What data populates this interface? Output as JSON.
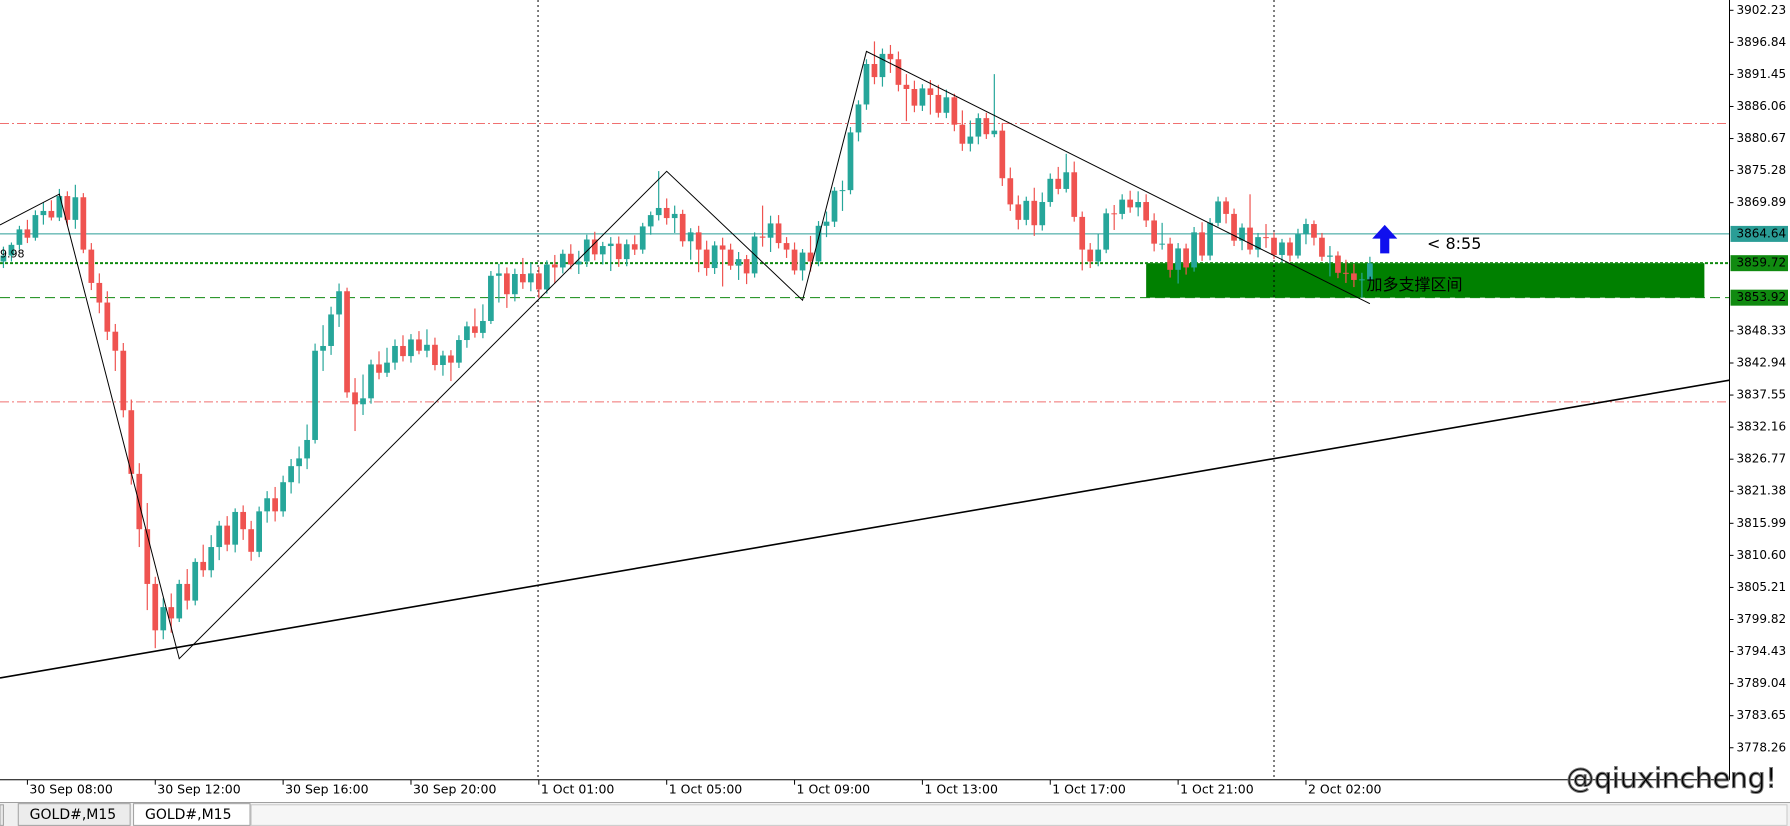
{
  "chart_data": {
    "type": "candlestick",
    "bull_color": "#26a69a",
    "bear_color": "#ef5350",
    "xlim": [
      -0.43,
      216
    ],
    "ylim": [
      3772.89,
      3903.96
    ],
    "yticks": [
      3902.23,
      3896.84,
      3891.45,
      3886.06,
      3880.67,
      3875.28,
      3869.89,
      3848.33,
      3842.94,
      3837.55,
      3832.16,
      3826.77,
      3821.38,
      3815.99,
      {
        "value": 3810.6,
        "label": "3810.60"
      },
      3805.21,
      3799.82,
      3794.43,
      3789.04,
      3783.65,
      3778.26
    ],
    "xticks": [
      {
        "value": 3,
        "label": "30 Sep 08:00"
      },
      {
        "value": 19,
        "label": "30 Sep 12:00"
      },
      {
        "value": 35,
        "label": "30 Sep 16:00"
      },
      {
        "value": 51,
        "label": "30 Sep 20:00"
      },
      {
        "value": 67,
        "label": "1 Oct 01:00"
      },
      {
        "value": 83,
        "label": "1 Oct 05:00"
      },
      {
        "value": 99,
        "label": "1 Oct 09:00"
      },
      {
        "value": 115,
        "label": "1 Oct 13:00"
      },
      {
        "value": 131,
        "label": "1 Oct 17:00"
      },
      {
        "value": 147,
        "label": "1 Oct 21:00"
      },
      {
        "value": 163,
        "label": "2 Oct 02:00"
      }
    ],
    "separators": [
      66.9,
      159
    ],
    "candles": [
      [
        3860,
        3862.5,
        3858.9,
        3861
      ],
      [
        3861,
        3863.2,
        3860,
        3862.8
      ],
      [
        3862.8,
        3866,
        3862,
        3865.4
      ],
      [
        3865.4,
        3867,
        3863.1,
        3864
      ],
      [
        3864,
        3868.6,
        3863.5,
        3867.8
      ],
      [
        3867.8,
        3869.9,
        3866.2,
        3868.5
      ],
      [
        3868.5,
        3870.3,
        3866.9,
        3867.4
      ],
      [
        3867.4,
        3872.2,
        3866.8,
        3871
      ],
      [
        3871,
        3871.8,
        3866.1,
        3867
      ],
      [
        3867,
        3872.9,
        3865.5,
        3870.8
      ],
      [
        3870.8,
        3871.5,
        3861.4,
        3862
      ],
      [
        3862,
        3863.1,
        3855.2,
        3856.4
      ],
      [
        3856.4,
        3858,
        3851.3,
        3853.1
      ],
      [
        3853.1,
        3855,
        3846.8,
        3848.2
      ],
      [
        3848.2,
        3849.5,
        3841.6,
        3845
      ],
      [
        3845,
        3846.3,
        3833.8,
        3835
      ],
      [
        3835,
        3836.8,
        3822.5,
        3824.3
      ],
      [
        3824.3,
        3826.1,
        3812,
        3815
      ],
      [
        3815,
        3819.4,
        3801.4,
        3805.8
      ],
      [
        3805.8,
        3807,
        3795,
        3798
      ],
      [
        3798,
        3803.4,
        3796.5,
        3801.9
      ],
      [
        3801.9,
        3804.2,
        3797.6,
        3800
      ],
      [
        3800,
        3806.5,
        3799.4,
        3805.8
      ],
      [
        3805.8,
        3808.3,
        3801.5,
        3803
      ],
      [
        3803,
        3810.1,
        3802.2,
        3809.5
      ],
      [
        3809.5,
        3812.4,
        3807,
        3808.1
      ],
      [
        3808.1,
        3814,
        3806.9,
        3812
      ],
      [
        3812,
        3816.4,
        3809.8,
        3815.6
      ],
      [
        3815.6,
        3817.2,
        3811.3,
        3812.4
      ],
      [
        3812.4,
        3818.5,
        3811.1,
        3817.9
      ],
      [
        3817.9,
        3819,
        3813.2,
        3815
      ],
      [
        3815,
        3816.4,
        3809.7,
        3811.2
      ],
      [
        3811.2,
        3818.8,
        3810.3,
        3818
      ],
      [
        3818,
        3821.4,
        3816.1,
        3820.2
      ],
      [
        3820.2,
        3822.1,
        3816.3,
        3818
      ],
      [
        3818,
        3824,
        3817.1,
        3822.9
      ],
      [
        3822.9,
        3826.8,
        3821,
        3825.6
      ],
      [
        3825.6,
        3828.9,
        3822.7,
        3826.9
      ],
      [
        3826.9,
        3832.6,
        3825.1,
        3830
      ],
      [
        3830,
        3846.2,
        3829.4,
        3845
      ],
      [
        3845,
        3849.3,
        3841.6,
        3845.8
      ],
      [
        3845.8,
        3852.4,
        3844.3,
        3851.1
      ],
      [
        3851.1,
        3856.3,
        3849,
        3855
      ],
      [
        3855,
        3855.6,
        3837.1,
        3838
      ],
      [
        3838,
        3840.4,
        3831.5,
        3836
      ],
      [
        3836,
        3841,
        3834.2,
        3837
      ],
      [
        3837,
        3843.5,
        3836.1,
        3842.7
      ],
      [
        3842.7,
        3844.9,
        3840.2,
        3841.3
      ],
      [
        3841.3,
        3845.5,
        3840.6,
        3843
      ],
      [
        3843,
        3846.9,
        3841.8,
        3845.8
      ],
      [
        3845.8,
        3847.6,
        3843.2,
        3844.1
      ],
      [
        3844.1,
        3847.8,
        3843,
        3846.9
      ],
      [
        3846.9,
        3848.3,
        3844.4,
        3845
      ],
      [
        3845,
        3848.6,
        3843.9,
        3846
      ],
      [
        3846,
        3847.2,
        3841.7,
        3842.6
      ],
      [
        3842.6,
        3845,
        3840.8,
        3844.2
      ],
      [
        3844.2,
        3845.1,
        3839.9,
        3843
      ],
      [
        3843,
        3847.6,
        3842.1,
        3846.8
      ],
      [
        3846.8,
        3849.9,
        3845.5,
        3849.1
      ],
      [
        3849.1,
        3852.1,
        3847.2,
        3848
      ],
      [
        3848,
        3852.8,
        3847.1,
        3850
      ],
      [
        3850,
        3858.4,
        3849.5,
        3857.6
      ],
      [
        3857.6,
        3859.6,
        3853.1,
        3858
      ],
      [
        3858,
        3859,
        3852.2,
        3854.5
      ],
      [
        3854.5,
        3858.8,
        3853.3,
        3857.9
      ],
      [
        3857.9,
        3860.6,
        3855.4,
        3856.5
      ],
      [
        3856.5,
        3859.8,
        3855,
        3858
      ],
      [
        3858,
        3859.1,
        3853.9,
        3855.3
      ],
      [
        3855.3,
        3860.2,
        3854.6,
        3859.5
      ],
      [
        3859.5,
        3861.1,
        3856.3,
        3859
      ],
      [
        3859,
        3862,
        3858,
        3861.3
      ],
      [
        3861.3,
        3862.9,
        3858.7,
        3859.5
      ],
      [
        3859.5,
        3861.8,
        3857.9,
        3860
      ],
      [
        3860,
        3864.5,
        3859.1,
        3863.7
      ],
      [
        3863.7,
        3865,
        3860.2,
        3861.2
      ],
      [
        3861.2,
        3863.3,
        3859.5,
        3862.6
      ],
      [
        3862.6,
        3864.1,
        3858.4,
        3863
      ],
      [
        3863,
        3864.2,
        3859.1,
        3860.4
      ],
      [
        3860.4,
        3863.7,
        3859.2,
        3862.9
      ],
      [
        3862.9,
        3864.4,
        3861.1,
        3862
      ],
      [
        3862,
        3866.5,
        3861.3,
        3865.9
      ],
      [
        3865.9,
        3868.4,
        3864.5,
        3867.8
      ],
      [
        3867.8,
        3875.2,
        3866.9,
        3869
      ],
      [
        3869,
        3870.6,
        3866.2,
        3867.3
      ],
      [
        3867.3,
        3869.4,
        3864.8,
        3868
      ],
      [
        3868,
        3868.7,
        3862.5,
        3863.4
      ],
      [
        3863.4,
        3865.6,
        3860.3,
        3864.9
      ],
      [
        3864.9,
        3866,
        3858.2,
        3862
      ],
      [
        3862,
        3863.5,
        3857.6,
        3858.9
      ],
      [
        3858.9,
        3863.4,
        3857.9,
        3862.7
      ],
      [
        3862.7,
        3864,
        3855.8,
        3862
      ],
      [
        3862,
        3863,
        3858.6,
        3859.3
      ],
      [
        3859.3,
        3861.6,
        3856.9,
        3860.4
      ],
      [
        3860.4,
        3861.1,
        3856.2,
        3858
      ],
      [
        3858,
        3864.9,
        3857.3,
        3864.2
      ],
      [
        3864.2,
        3869.4,
        3862.5,
        3864
      ],
      [
        3864,
        3867.7,
        3861.6,
        3866.4
      ],
      [
        3866.4,
        3867.8,
        3862.2,
        3863.1
      ],
      [
        3863.1,
        3864.1,
        3860.6,
        3862
      ],
      [
        3862,
        3863.2,
        3857.8,
        3858.5
      ],
      [
        3858.5,
        3862.1,
        3856.8,
        3861.5
      ],
      [
        3861.5,
        3864.3,
        3858.3,
        3860
      ],
      [
        3860,
        3866.8,
        3859.2,
        3866
      ],
      [
        3866,
        3868.4,
        3864.1,
        3866.7
      ],
      [
        3866.7,
        3872.5,
        3865.8,
        3871.9
      ],
      [
        3871.9,
        3873.6,
        3868.5,
        3872
      ],
      [
        3872,
        3882.6,
        3871.3,
        3881.7
      ],
      [
        3881.7,
        3887.1,
        3880.2,
        3886.4
      ],
      [
        3886.4,
        3894,
        3885.5,
        3893.2
      ],
      [
        3893.2,
        3897,
        3889.8,
        3891
      ],
      [
        3891,
        3895.8,
        3889.4,
        3894.9
      ],
      [
        3894.9,
        3896.4,
        3891.7,
        3894
      ],
      [
        3894,
        3895.3,
        3888.6,
        3889.7
      ],
      [
        3889.7,
        3891.5,
        3883.6,
        3889
      ],
      [
        3889,
        3890.4,
        3885.1,
        3886.2
      ],
      [
        3886.2,
        3889.8,
        3885.3,
        3889.1
      ],
      [
        3889.1,
        3890.5,
        3884.7,
        3888
      ],
      [
        3888,
        3889.7,
        3884.2,
        3885
      ],
      [
        3885,
        3888.9,
        3884.1,
        3887.6
      ],
      [
        3887.6,
        3888.2,
        3881.9,
        3883
      ],
      [
        3883,
        3885.4,
        3878.6,
        3879.8
      ],
      [
        3879.8,
        3883.7,
        3878.5,
        3881
      ],
      [
        3881,
        3884.9,
        3879.7,
        3884.1
      ],
      [
        3884.1,
        3885,
        3880.6,
        3881.4
      ],
      [
        3881.4,
        3891.5,
        3880.9,
        3882
      ],
      [
        3882,
        3883.3,
        3872.7,
        3874
      ],
      [
        3874,
        3875.8,
        3868.5,
        3869.6
      ],
      [
        3869.6,
        3871.1,
        3865.4,
        3867
      ],
      [
        3867,
        3870.9,
        3866.1,
        3870.2
      ],
      [
        3870.2,
        3872.4,
        3864.3,
        3866.1
      ],
      [
        3866.1,
        3871.6,
        3865.2,
        3870
      ],
      [
        3870,
        3874.8,
        3869.2,
        3873.9
      ],
      [
        3873.9,
        3875.9,
        3871.3,
        3872.2
      ],
      [
        3872.2,
        3878.1,
        3871.6,
        3875
      ],
      [
        3875,
        3876.8,
        3866.7,
        3867.5
      ],
      [
        3867.5,
        3868.4,
        3858.5,
        3862
      ],
      [
        3862,
        3863.1,
        3858.9,
        3860
      ],
      [
        3860,
        3864.7,
        3859.2,
        3862
      ],
      [
        3862,
        3868.9,
        3861.4,
        3868.1
      ],
      [
        3868.1,
        3869.5,
        3865.3,
        3868
      ],
      [
        3868,
        3871.3,
        3867.1,
        3870.4
      ],
      [
        3870.4,
        3871.9,
        3868.2,
        3869.1
      ],
      [
        3869.1,
        3871.8,
        3867.6,
        3870
      ],
      [
        3870,
        3871.3,
        3865.8,
        3866.9
      ],
      [
        3866.9,
        3868.1,
        3861.7,
        3863
      ],
      [
        3863,
        3866.5,
        3862,
        3863
      ],
      [
        3863,
        3864,
        3857.3,
        3858.6
      ],
      [
        3858.6,
        3863.1,
        3856.3,
        3862.2
      ],
      [
        3862.2,
        3863,
        3857.8,
        3859
      ],
      [
        3859,
        3865.8,
        3858.3,
        3864.9
      ],
      [
        3864.9,
        3866.6,
        3860.1,
        3861
      ],
      [
        3861,
        3867.3,
        3860.2,
        3866.5
      ],
      [
        3866.5,
        3870.9,
        3865.9,
        3870.1
      ],
      [
        3870.1,
        3870.8,
        3866.4,
        3868
      ],
      [
        3868,
        3868.9,
        3862.6,
        3863.5
      ],
      [
        3863.5,
        3866.4,
        3861.9,
        3865.7
      ],
      [
        3865.7,
        3871.3,
        3861.2,
        3862
      ],
      [
        3862,
        3864.8,
        3860.7,
        3864.1
      ],
      [
        3864.1,
        3866.3,
        3862.3,
        3864
      ],
      [
        3864,
        3864.9,
        3860.4,
        3861.1
      ],
      [
        3861.1,
        3863.8,
        3859.9,
        3863.2
      ],
      [
        3863.2,
        3864,
        3860,
        3861
      ],
      [
        3861,
        3865.5,
        3860.5,
        3864.6
      ],
      [
        3864.6,
        3867.2,
        3862.9,
        3866.3
      ],
      [
        3866.3,
        3866.9,
        3862.7,
        3864
      ],
      [
        3864,
        3864.8,
        3860.1,
        3860.8
      ],
      [
        3860.8,
        3862.6,
        3857.5,
        3861
      ],
      [
        3861,
        3861.7,
        3857.2,
        3858.1
      ],
      [
        3858.1,
        3860.3,
        3856.4,
        3858
      ],
      [
        3858,
        3859.6,
        3855.7,
        3856.9
      ],
      [
        3856.9,
        3858.1,
        3853.9,
        3857
      ],
      [
        3857,
        3860.8,
        3856.3,
        3859.7
      ]
    ],
    "zigzag": {
      "x": [
        -0.43,
        7,
        22,
        83,
        100,
        108,
        171
      ],
      "values": [
        3866.15,
        3871.33,
        3793.23,
        3875.17,
        3853.49,
        3895.32,
        3852.91
      ]
    },
    "trendline": [
      3790.0,
      3840.05
    ],
    "levels": [
      {
        "value": 3883.2,
        "color": "#f07070",
        "style": "dashdot"
      },
      {
        "value": 3836.4,
        "color": "#f07070",
        "style": "dashdot"
      },
      {
        "value": 3864.64,
        "color": "#2a9d96",
        "style": "solid",
        "tag": true
      },
      {
        "value": 3859.72,
        "color": "#108a10",
        "style": "dotted",
        "tag": true
      },
      {
        "value": 3853.92,
        "color": "#108a10",
        "style": "dashed",
        "tag": true
      }
    ],
    "zone": {
      "label": "加多支撑区间",
      "color": "#008000"
    },
    "countdown": "< 8:55",
    "left_label": "9.98",
    "watermark": "@qiuxincheng!",
    "tabs": [
      "GOLD#,M15",
      "GOLD#,M15"
    ]
  }
}
